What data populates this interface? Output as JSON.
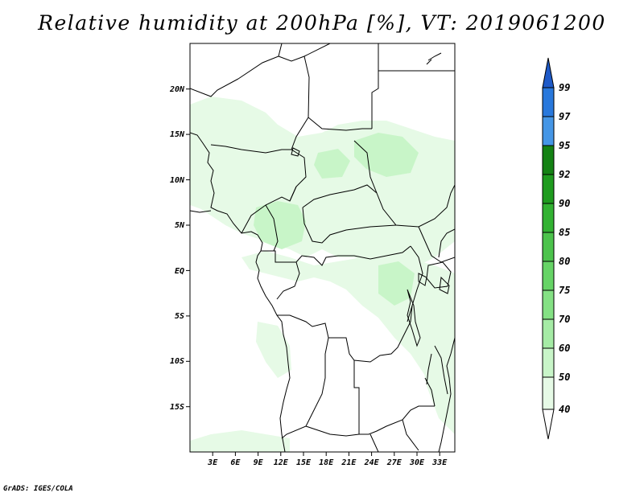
{
  "title": "Relative humidity at 200hPa [%], VT: 2019061200",
  "credit": "GrADS: IGES/COLA",
  "map": {
    "lon_labels": [
      "3E",
      "6E",
      "9E",
      "12E",
      "15E",
      "18E",
      "21E",
      "24E",
      "27E",
      "30E",
      "33E"
    ],
    "lat_labels": [
      "20N",
      "15N",
      "10N",
      "5N",
      "EQ",
      "5S",
      "10S",
      "15S"
    ],
    "lon_range": [
      0,
      35
    ],
    "lat_range": [
      -20,
      25
    ]
  },
  "colorbar": {
    "levels": [
      "40",
      "50",
      "60",
      "70",
      "75",
      "80",
      "85",
      "90",
      "92",
      "95",
      "97",
      "99"
    ],
    "colors": [
      "#ffffff",
      "#e6fae6",
      "#c8f5c8",
      "#a5eba5",
      "#84e184",
      "#66d466",
      "#4cc34c",
      "#32b232",
      "#1e9b1e",
      "#148214",
      "#4596e6",
      "#2878dc",
      "#1e5ac8"
    ]
  }
}
